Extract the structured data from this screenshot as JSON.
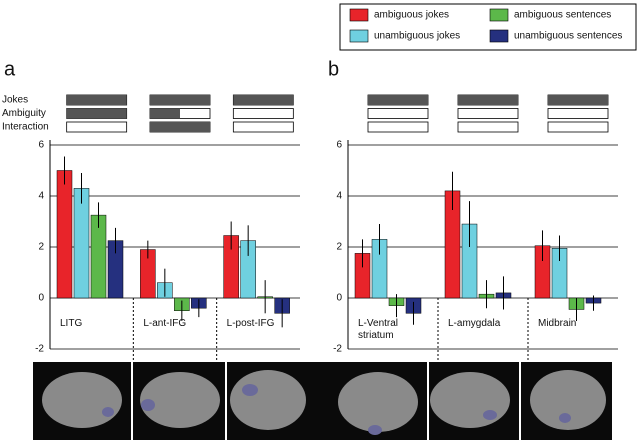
{
  "legend_corner": "top-right",
  "design_rows": [
    "Jokes",
    "Ambiguity",
    "Interaction"
  ],
  "chart_data": [
    {
      "type": "bar",
      "panel": "a",
      "categories": [
        "LITG",
        "L-ant-IFG",
        "L-post-IFG"
      ],
      "design": [
        [
          1,
          1,
          1
        ],
        [
          1,
          0.5,
          0
        ],
        [
          0,
          1,
          0
        ]
      ],
      "ylim": [
        -2,
        6
      ],
      "yticks": [
        -2,
        0,
        2,
        4,
        6
      ],
      "grid": true,
      "series": [
        {
          "name": "ambiguous jokes",
          "color": "#e8242a",
          "values": [
            5.0,
            1.9,
            2.45
          ],
          "errors": [
            0.55,
            0.35,
            0.55
          ]
        },
        {
          "name": "unambiguous jokes",
          "color": "#6fd0e0",
          "values": [
            4.3,
            0.6,
            2.25
          ],
          "errors": [
            0.6,
            0.55,
            0.6
          ]
        },
        {
          "name": "ambiguous sentences",
          "color": "#5cb84a",
          "values": [
            3.25,
            -0.5,
            0.05
          ],
          "errors": [
            0.5,
            0.4,
            0.65
          ]
        },
        {
          "name": "unambiguous sentences",
          "color": "#25307f",
          "values": [
            2.25,
            -0.4,
            -0.6
          ],
          "errors": [
            0.5,
            0.35,
            0.55
          ]
        }
      ]
    },
    {
      "type": "bar",
      "panel": "b",
      "categories": [
        "L-Ventral striatum",
        "L-amygdala",
        "Midbrain"
      ],
      "design": [
        [
          1,
          1,
          1
        ],
        [
          0,
          0,
          0
        ],
        [
          0,
          0,
          0
        ]
      ],
      "ylim": [
        -2,
        6
      ],
      "yticks": [
        -2,
        0,
        2,
        4,
        6
      ],
      "grid": true,
      "series": [
        {
          "name": "ambiguous jokes",
          "color": "#e8242a",
          "values": [
            1.75,
            4.2,
            2.05
          ],
          "errors": [
            0.55,
            0.75,
            0.6
          ]
        },
        {
          "name": "unambiguous jokes",
          "color": "#6fd0e0",
          "values": [
            2.3,
            2.9,
            1.95
          ],
          "errors": [
            0.6,
            0.9,
            0.5
          ]
        },
        {
          "name": "ambiguous sentences",
          "color": "#5cb84a",
          "values": [
            -0.3,
            0.15,
            -0.45
          ],
          "errors": [
            0.45,
            0.55,
            0.45
          ]
        },
        {
          "name": "unambiguous sentences",
          "color": "#25307f",
          "values": [
            -0.6,
            0.2,
            -0.2
          ],
          "errors": [
            0.45,
            0.65,
            0.3
          ]
        }
      ]
    }
  ]
}
